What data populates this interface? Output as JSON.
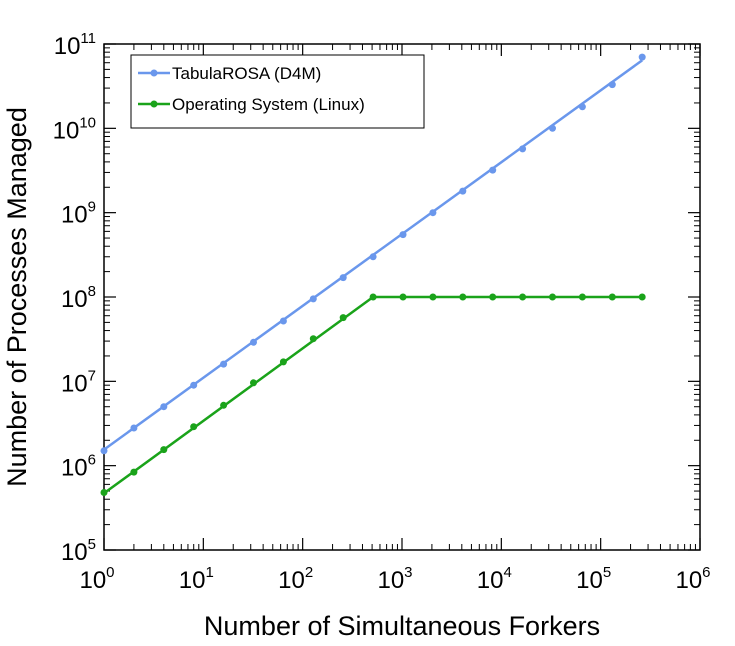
{
  "chart_data": {
    "type": "line",
    "xscale": "log",
    "yscale": "log",
    "xlabel": "Number of Simultaneous Forkers",
    "ylabel": "Number of Processes Managed",
    "xlim": [
      1,
      1000000
    ],
    "ylim": [
      100000,
      100000000000
    ],
    "x_ticks": [
      {
        "base": "10",
        "exp": "0",
        "value": 1
      },
      {
        "base": "10",
        "exp": "1",
        "value": 10
      },
      {
        "base": "10",
        "exp": "2",
        "value": 100
      },
      {
        "base": "10",
        "exp": "3",
        "value": 1000
      },
      {
        "base": "10",
        "exp": "4",
        "value": 10000
      },
      {
        "base": "10",
        "exp": "5",
        "value": 100000
      },
      {
        "base": "10",
        "exp": "6",
        "value": 1000000
      }
    ],
    "y_ticks": [
      {
        "base": "10",
        "exp": "5",
        "value": 100000
      },
      {
        "base": "10",
        "exp": "6",
        "value": 1000000
      },
      {
        "base": "10",
        "exp": "7",
        "value": 10000000
      },
      {
        "base": "10",
        "exp": "8",
        "value": 100000000
      },
      {
        "base": "10",
        "exp": "9",
        "value": 1000000000
      },
      {
        "base": "10",
        "exp": "10",
        "value": 10000000000
      },
      {
        "base": "10",
        "exp": "11",
        "value": 100000000000
      }
    ],
    "grid": false,
    "legend_position": "top-left",
    "series": [
      {
        "name": "TabulaROSA (D4M)",
        "color": "#6a97ec",
        "points": {
          "x": [
            1,
            2,
            4,
            8,
            16,
            32,
            64,
            128,
            256,
            512,
            1024,
            2048,
            4096,
            8192,
            16384,
            32768,
            65536,
            131072,
            262144
          ],
          "y": [
            1500000,
            2800000,
            5000000,
            9000000,
            16000000,
            29000000,
            52000000,
            95000000,
            170000000,
            300000000,
            550000000,
            1000000000,
            1800000000,
            3200000000,
            5700000000,
            10000000000,
            18000000000,
            33000000000,
            70000000000
          ]
        },
        "fit": {
          "x": [
            1,
            262144
          ],
          "y": [
            1550000,
            64000000000
          ]
        }
      },
      {
        "name": "Operating System (Linux)",
        "color": "#1aa31a",
        "points": {
          "x": [
            1,
            2,
            4,
            8,
            16,
            32,
            64,
            128,
            256,
            512,
            1024,
            2048,
            4096,
            8192,
            16384,
            32768,
            65536,
            131072,
            262144
          ],
          "y": [
            480000,
            840000,
            1550000,
            2900000,
            5200000,
            9600000,
            17000000,
            32000000,
            57000000,
            100000000,
            100000000,
            100000000,
            100000000,
            100000000,
            100000000,
            100000000,
            100000000,
            100000000,
            100000000
          ]
        },
        "fit": {
          "x": [
            1,
            512,
            262144
          ],
          "y": [
            470000,
            100000000,
            100000000
          ]
        }
      }
    ]
  }
}
